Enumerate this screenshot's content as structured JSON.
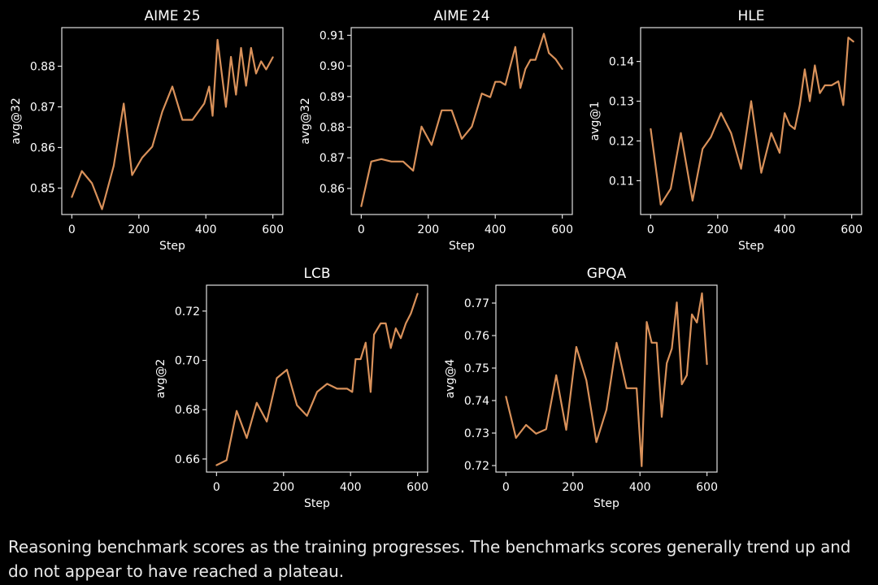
{
  "caption": "Reasoning benchmark scores as the training progresses. The benchmarks scores generally trend up and do not appear to have reached a plateau.",
  "colors": {
    "background": "#000000",
    "axes": "#e0e0e0",
    "text": "#ffffff",
    "line": "#d9915a"
  },
  "chart_data": [
    {
      "type": "line",
      "title": "AIME 25",
      "xlabel": "Step",
      "ylabel": "avg@32",
      "xlim": [
        -30,
        630
      ],
      "ylim": [
        0.8435,
        0.8895
      ],
      "xticks": [
        0,
        200,
        400,
        600
      ],
      "yticks": [
        0.85,
        0.86,
        0.87,
        0.88
      ],
      "ytick_labels": [
        "0.85",
        "0.86",
        "0.87",
        "0.88"
      ],
      "x": [
        0,
        30,
        60,
        90,
        125,
        155,
        180,
        210,
        240,
        270,
        300,
        330,
        360,
        395,
        410,
        420,
        435,
        460,
        475,
        490,
        505,
        520,
        535,
        550,
        565,
        580,
        600
      ],
      "y": [
        0.8478,
        0.8542,
        0.8512,
        0.8448,
        0.8555,
        0.8708,
        0.8532,
        0.8575,
        0.8602,
        0.8688,
        0.875,
        0.8668,
        0.8668,
        0.8708,
        0.875,
        0.8678,
        0.8865,
        0.87,
        0.8823,
        0.873,
        0.8845,
        0.8752,
        0.8845,
        0.8782,
        0.8812,
        0.8792,
        0.8822
      ]
    },
    {
      "type": "line",
      "title": "AIME 24",
      "xlabel": "Step",
      "ylabel": "avg@32",
      "xlim": [
        -30,
        630
      ],
      "ylim": [
        0.8515,
        0.9125
      ],
      "xticks": [
        0,
        200,
        400,
        600
      ],
      "yticks": [
        0.86,
        0.87,
        0.88,
        0.89,
        0.9,
        0.91
      ],
      "ytick_labels": [
        "0.86",
        "0.87",
        "0.88",
        "0.89",
        "0.90",
        "0.91"
      ],
      "x": [
        0,
        30,
        60,
        90,
        125,
        155,
        180,
        210,
        240,
        270,
        300,
        330,
        360,
        385,
        400,
        415,
        430,
        460,
        475,
        490,
        505,
        520,
        545,
        560,
        580,
        600
      ],
      "y": [
        0.8542,
        0.8688,
        0.8696,
        0.8688,
        0.8688,
        0.8658,
        0.8802,
        0.8742,
        0.8855,
        0.8855,
        0.8762,
        0.8802,
        0.891,
        0.8898,
        0.8948,
        0.8948,
        0.8938,
        0.9062,
        0.8928,
        0.899,
        0.902,
        0.902,
        0.9105,
        0.9042,
        0.9022,
        0.899
      ]
    },
    {
      "type": "line",
      "title": "HLE",
      "xlabel": "Step",
      "ylabel": "avg@1",
      "xlim": [
        -30,
        630
      ],
      "ylim": [
        0.1015,
        0.1485
      ],
      "xticks": [
        0,
        200,
        400,
        600
      ],
      "yticks": [
        0.11,
        0.12,
        0.13,
        0.14
      ],
      "ytick_labels": [
        "0.11",
        "0.12",
        "0.13",
        "0.14"
      ],
      "x": [
        0,
        30,
        60,
        90,
        125,
        155,
        180,
        210,
        240,
        270,
        300,
        330,
        360,
        385,
        400,
        415,
        430,
        445,
        460,
        475,
        490,
        505,
        520,
        540,
        560,
        575,
        590,
        605
      ],
      "y": [
        0.123,
        0.104,
        0.108,
        0.122,
        0.105,
        0.118,
        0.121,
        0.127,
        0.122,
        0.113,
        0.13,
        0.112,
        0.122,
        0.117,
        0.127,
        0.124,
        0.123,
        0.129,
        0.138,
        0.13,
        0.139,
        0.132,
        0.134,
        0.134,
        0.135,
        0.129,
        0.146,
        0.145
      ]
    },
    {
      "type": "line",
      "title": "LCB",
      "xlabel": "Step",
      "ylabel": "avg@2",
      "xlim": [
        -30,
        630
      ],
      "ylim": [
        0.6547,
        0.7305
      ],
      "xticks": [
        0,
        200,
        400,
        600
      ],
      "yticks": [
        0.66,
        0.68,
        0.7,
        0.72
      ],
      "ytick_labels": [
        "0.66",
        "0.68",
        "0.70",
        "0.72"
      ],
      "x": [
        0,
        30,
        60,
        90,
        120,
        150,
        180,
        210,
        240,
        270,
        300,
        330,
        360,
        390,
        405,
        415,
        430,
        445,
        460,
        470,
        490,
        505,
        520,
        535,
        550,
        565,
        580,
        600
      ],
      "y": [
        0.6575,
        0.6595,
        0.6795,
        0.6685,
        0.6828,
        0.6752,
        0.6928,
        0.6962,
        0.6818,
        0.6775,
        0.6872,
        0.6905,
        0.6885,
        0.6885,
        0.6872,
        0.7005,
        0.7005,
        0.7072,
        0.6872,
        0.7105,
        0.715,
        0.715,
        0.705,
        0.713,
        0.709,
        0.715,
        0.719,
        0.727
      ]
    },
    {
      "type": "line",
      "title": "GPQA",
      "xlabel": "Step",
      "ylabel": "avg@4",
      "xlim": [
        -30,
        630
      ],
      "ylim": [
        0.718,
        0.7755
      ],
      "xticks": [
        0,
        200,
        400,
        600
      ],
      "yticks": [
        0.72,
        0.73,
        0.74,
        0.75,
        0.76,
        0.77
      ],
      "ytick_labels": [
        "0.72",
        "0.73",
        "0.74",
        "0.75",
        "0.76",
        "0.77"
      ],
      "x": [
        0,
        30,
        60,
        90,
        120,
        150,
        180,
        210,
        240,
        270,
        300,
        330,
        360,
        390,
        405,
        420,
        435,
        450,
        465,
        480,
        495,
        510,
        525,
        540,
        555,
        570,
        585,
        600
      ],
      "y": [
        0.7412,
        0.7285,
        0.7325,
        0.7298,
        0.7312,
        0.7478,
        0.731,
        0.7565,
        0.7462,
        0.7272,
        0.7372,
        0.7578,
        0.7438,
        0.7438,
        0.7198,
        0.7642,
        0.7578,
        0.7578,
        0.735,
        0.7515,
        0.756,
        0.7702,
        0.745,
        0.7478,
        0.7665,
        0.764,
        0.773,
        0.7512
      ]
    }
  ]
}
